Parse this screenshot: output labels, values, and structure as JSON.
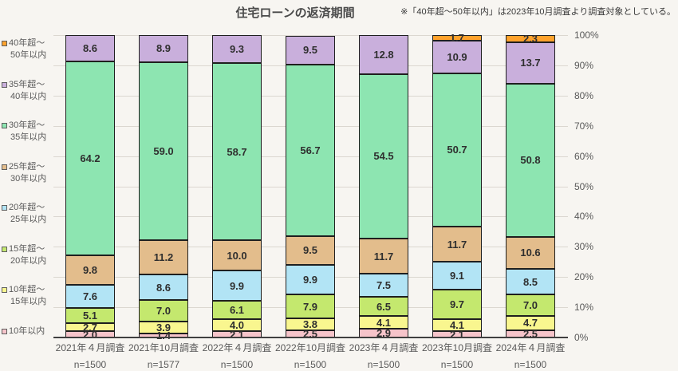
{
  "title": "住宅ローンの返済期間",
  "note": "※「40年超～50年以内」は2023年10月調査より調査対象としている。",
  "chart_data": {
    "type": "bar",
    "stacked": true,
    "orientation": "vertical",
    "unit": "%",
    "ylim": [
      0,
      100
    ],
    "grid": true,
    "legend_position": "left",
    "y_tick_labels": [
      "0%",
      "10%",
      "20%",
      "30%",
      "40%",
      "50%",
      "60%",
      "70%",
      "80%",
      "90%",
      "100%"
    ],
    "categories": [
      "2021年４月調査",
      "2021年10月調査",
      "2022年４月調査",
      "2022年10月調査",
      "2023年４月調査",
      "2023年10月調査",
      "2024年４月調査"
    ],
    "sample_sizes": [
      "n=1500",
      "n=1577",
      "n=1500",
      "n=1500",
      "n=1500",
      "n=1500",
      "n=1500"
    ],
    "series_bottom_to_top": [
      {
        "name": "10年以内",
        "label_line1": "10年以内",
        "label_line2": "",
        "color": "#F6C4CA",
        "values": [
          2.0,
          1.4,
          2.1,
          2.5,
          2.9,
          2.1,
          2.5
        ]
      },
      {
        "name": "10年超～15年以内",
        "label_line1": "10年超～",
        "label_line2": "15年以内",
        "color": "#F9F68F",
        "values": [
          2.7,
          3.9,
          4.0,
          3.8,
          4.1,
          4.1,
          4.7
        ]
      },
      {
        "name": "15年超～20年以内",
        "label_line1": "15年超～",
        "label_line2": "20年以内",
        "color": "#C4E86E",
        "values": [
          5.1,
          7.0,
          6.1,
          7.9,
          6.5,
          9.7,
          7.0
        ]
      },
      {
        "name": "20年超～25年以内",
        "label_line1": "20年超～",
        "label_line2": "25年以内",
        "color": "#B2E4F5",
        "values": [
          7.6,
          8.6,
          9.9,
          9.9,
          7.5,
          9.1,
          8.5
        ]
      },
      {
        "name": "25年超～30年以内",
        "label_line1": "25年超～",
        "label_line2": "30年以内",
        "color": "#E3BD8C",
        "values": [
          9.8,
          11.2,
          10.0,
          9.5,
          11.7,
          11.7,
          10.6
        ]
      },
      {
        "name": "30年超～35年以内",
        "label_line1": "30年超～",
        "label_line2": "35年以内",
        "color": "#8DE5B1",
        "values": [
          64.2,
          59.0,
          58.7,
          56.7,
          54.5,
          50.7,
          50.8
        ]
      },
      {
        "name": "35年超～40年以内",
        "label_line1": "35年超～",
        "label_line2": "40年以内",
        "color": "#C9AFDC",
        "values": [
          8.6,
          8.9,
          9.3,
          9.5,
          12.8,
          10.9,
          13.7
        ]
      },
      {
        "name": "40年超～50年以内",
        "label_line1": "40年超～",
        "label_line2": "50年以内",
        "color": "#FFA22C",
        "values": [
          null,
          null,
          null,
          null,
          null,
          1.7,
          2.3
        ]
      }
    ]
  }
}
